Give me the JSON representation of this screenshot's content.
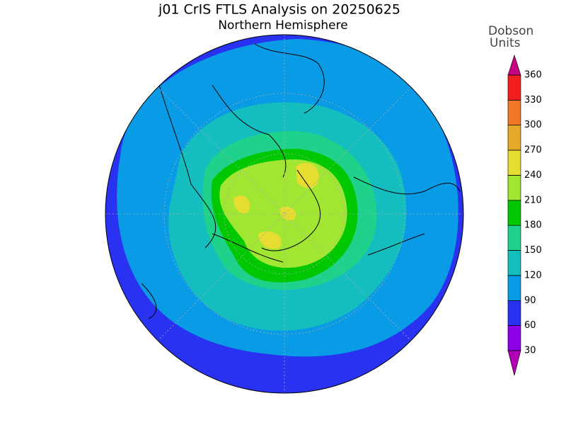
{
  "title": "j01 CrIS FTLS Analysis on 20250625",
  "subtitle": "Northern Hemisphere",
  "colorbar": {
    "label": [
      "Dobson",
      "Units"
    ],
    "ticks": [
      30,
      60,
      90,
      120,
      150,
      180,
      210,
      240,
      270,
      300,
      330,
      360
    ],
    "colors": [
      "#b400b4",
      "#8c00e6",
      "#2832f0",
      "#0a9be6",
      "#14bebe",
      "#1ed28c",
      "#00c800",
      "#a0e632",
      "#e6dc32",
      "#e6aa28",
      "#f07828",
      "#f01e1e",
      "#c80082"
    ]
  }
}
